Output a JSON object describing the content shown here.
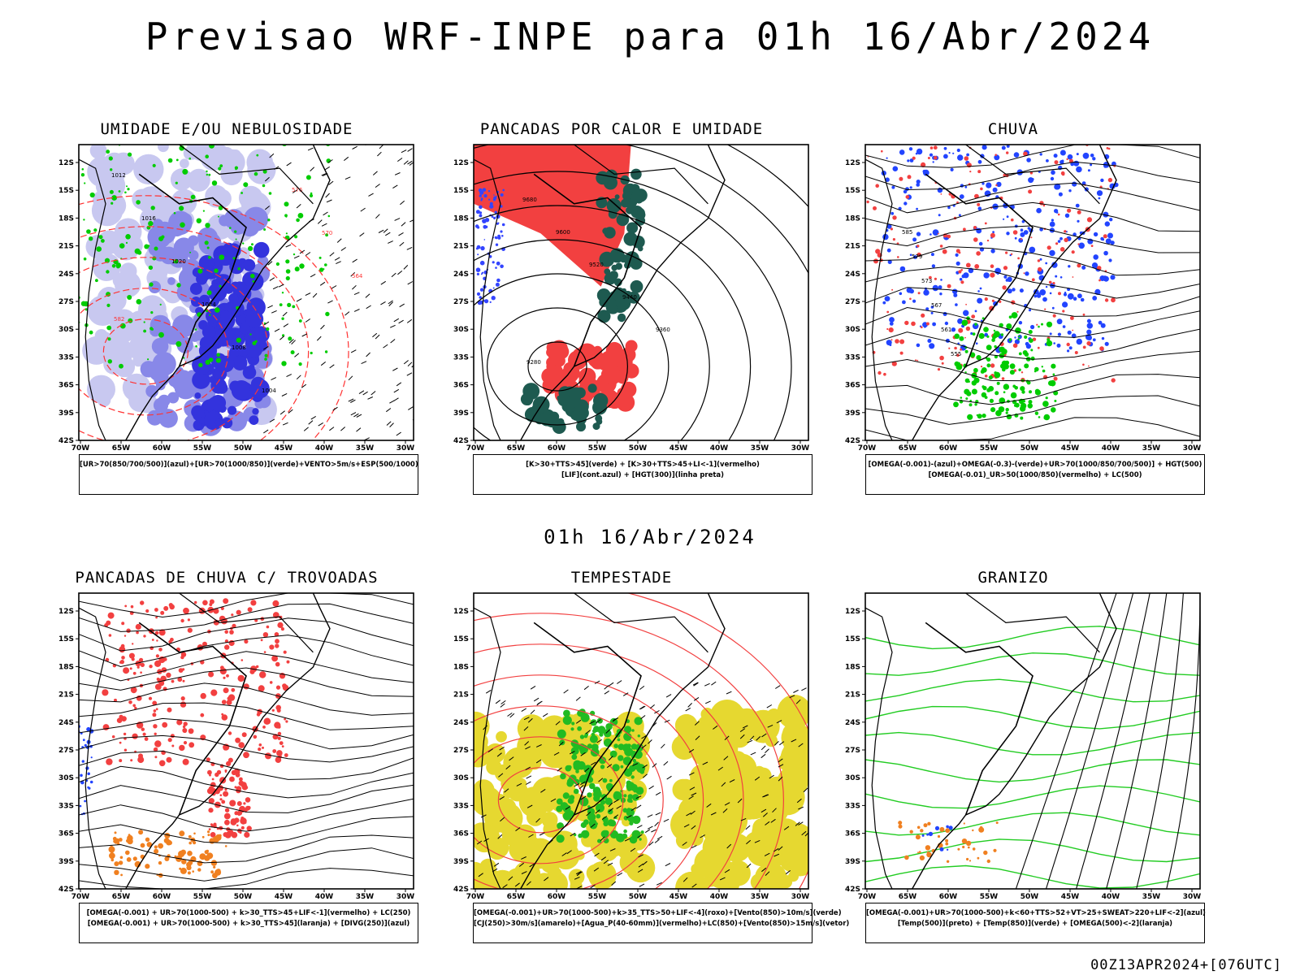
{
  "header": {
    "title": "Previsao WRF-INPE  para 01h 16/Abr/2024",
    "subtitle": "01h 16/Abr/2024",
    "footer": "00Z13APR2024+[076UTC]"
  },
  "axes": {
    "lat_labels": [
      "12S",
      "15S",
      "18S",
      "21S",
      "24S",
      "27S",
      "30S",
      "33S",
      "36S",
      "39S",
      "42S"
    ],
    "lon_labels": [
      "70W",
      "65W",
      "60W",
      "55W",
      "50W",
      "45W",
      "40W",
      "35W",
      "30W"
    ]
  },
  "panels": [
    {
      "title": "UMIDADE E/OU NEBULOSIDADE",
      "legend": [
        "[UR>70(850/700/500)](azul)+[UR>70(1000/850)](verde)+VENTO>5m/s+ESP(500/1000)"
      ],
      "colors": [
        "#c8c8f0",
        "#8888e8",
        "#3333dd",
        "#00cc00",
        "#ff3333"
      ]
    },
    {
      "title": "PANCADAS POR CALOR E UMIDADE",
      "legend": [
        "[K>30+TTS>45](verde) + [K>30+TTS>45+LI<-1](vermelho)",
        "[LIF](cont.azul) + [HGT(300)](linha preta)"
      ],
      "colors": [
        "#f24040",
        "#1e5a50",
        "#3344ff"
      ]
    },
    {
      "title": "CHUVA",
      "legend": [
        "[OMEGA(-0.001)-(azul)+OMEGA(-0.3)-(verde)+UR>70(1000/850/700/500)] + HGT(500)",
        "[OMEGA(-0.01)_UR>50(1000/850)(vermelho) + LC(500)"
      ],
      "colors": [
        "#2244ff",
        "#00cc00",
        "#f24040"
      ]
    },
    {
      "title": "PANCADAS DE CHUVA C/ TROVOADAS",
      "legend": [
        "[OMEGA(-0.001) + UR>70(1000-500) + k>30_TTS>45+LIF<-1](vermelho) + LC(250)",
        "[OMEGA(-0.001) + UR>70(1000-500) + k>30_TTS>45](laranja) + [DIVG(250)](azul)"
      ],
      "colors": [
        "#f24040",
        "#f08020",
        "#2244ff"
      ]
    },
    {
      "title": "TEMPESTADE",
      "legend": [
        "[OMEGA(-0.001)+UR>70(1000-500)+k>35_TTS>50+LIF<-4](roxo)+[Vento(850)>10m/s](verde)",
        "[CJ(250)>30m/s](amarelo)+[Agua_P(40-60mm)](vermelho)+LC(850)+[Vento(850)>15m/s](vetor)"
      ],
      "colors": [
        "#e6d830",
        "#22bb22",
        "#f24040"
      ]
    },
    {
      "title": "GRANIZO",
      "legend": [
        "[OMEGA(-0.001)+UR>70(1000-500)+k<60+TTS>52+VT>25+SWEAT>220+LIF<-2](azul)",
        "[Temp(500)](preto) + [Temp(850)](verde) + [OMEGA(500)<-2](laranja)"
      ],
      "colors": [
        "#22cc22",
        "#f08020",
        "#2244ff"
      ]
    }
  ],
  "contour_labels": {
    "p1": [
      "1012",
      "1016",
      "1020",
      "1024",
      "1008",
      "1004",
      "576",
      "570",
      "564",
      "582"
    ],
    "p2": [
      "9680",
      "9600",
      "9520",
      "9440",
      "9360",
      "9280"
    ],
    "p3": [
      "585",
      "579",
      "573",
      "567",
      "561",
      "555"
    ]
  }
}
